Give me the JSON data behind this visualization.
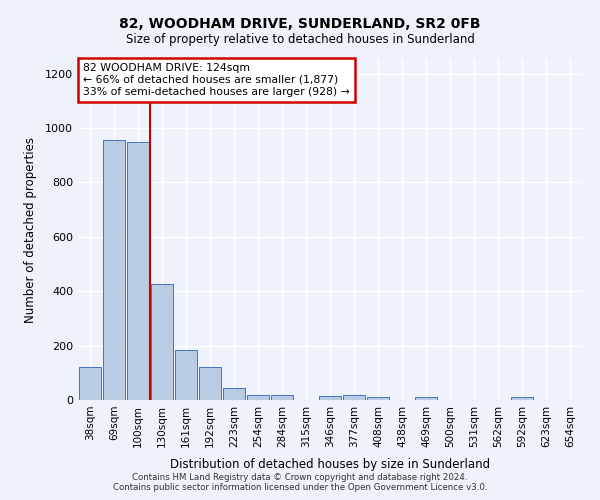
{
  "title": "82, WOODHAM DRIVE, SUNDERLAND, SR2 0FB",
  "subtitle": "Size of property relative to detached houses in Sunderland",
  "xlabel": "Distribution of detached houses by size in Sunderland",
  "ylabel": "Number of detached properties",
  "footer_line1": "Contains HM Land Registry data © Crown copyright and database right 2024.",
  "footer_line2": "Contains public sector information licensed under the Open Government Licence v3.0.",
  "categories": [
    "38sqm",
    "69sqm",
    "100sqm",
    "130sqm",
    "161sqm",
    "192sqm",
    "223sqm",
    "254sqm",
    "284sqm",
    "315sqm",
    "346sqm",
    "377sqm",
    "408sqm",
    "438sqm",
    "469sqm",
    "500sqm",
    "531sqm",
    "562sqm",
    "592sqm",
    "623sqm",
    "654sqm"
  ],
  "values": [
    120,
    955,
    948,
    428,
    185,
    120,
    43,
    20,
    20,
    0,
    15,
    17,
    10,
    0,
    10,
    0,
    0,
    0,
    10,
    0,
    0
  ],
  "bar_color": "#b8cce4",
  "bar_edge_color": "#4472c4",
  "ylim": [
    0,
    1250
  ],
  "yticks": [
    0,
    200,
    400,
    600,
    800,
    1000,
    1200
  ],
  "annotation_text": "82 WOODHAM DRIVE: 124sqm\n← 66% of detached houses are smaller (1,877)\n33% of semi-detached houses are larger (928) →",
  "annotation_box_color": "#ffffff",
  "annotation_box_edge": "#cc0000",
  "vline_color": "#cc0000",
  "vline_x_index": 2.5,
  "background_color": "#eef2fa",
  "grid_color": "#ffffff"
}
